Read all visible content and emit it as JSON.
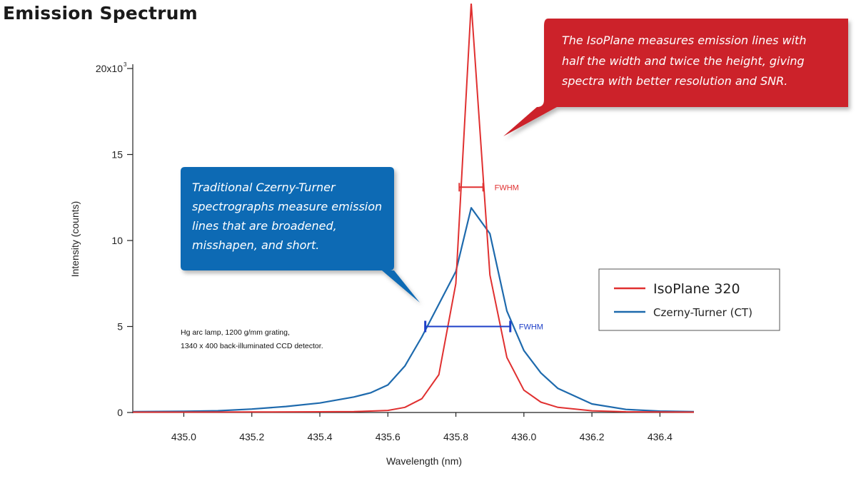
{
  "page": {
    "title": "Emission Spectrum"
  },
  "chart_data": {
    "type": "line",
    "title": "Emission Spectrum",
    "xlabel": "Wavelength (nm)",
    "ylabel": "Intensity (counts)",
    "xlim": [
      434.85,
      436.5
    ],
    "ylim": [
      0,
      20
    ],
    "x_ticks": [
      435.0,
      435.2,
      435.4,
      435.6,
      435.8,
      436.0,
      436.2,
      436.4
    ],
    "x_tick_labels": [
      "435.0",
      "435.2",
      "435.4",
      "435.6",
      "435.8",
      "436.0",
      "436.2",
      "436.4"
    ],
    "y_ticks": [
      0,
      5,
      10,
      15,
      20
    ],
    "y_tick_labels": [
      "0",
      "5",
      "10",
      "15",
      "20x10"
    ],
    "y_top_exponent": "3",
    "grid": false,
    "legend_position": "right",
    "series": [
      {
        "name": "IsoPlane 320",
        "color": "#e03030",
        "x": [
          434.85,
          435.0,
          435.2,
          435.4,
          435.5,
          435.6,
          435.65,
          435.7,
          435.75,
          435.8,
          435.845,
          435.9,
          435.95,
          436.0,
          436.05,
          436.1,
          436.2,
          436.3,
          436.5
        ],
        "values": [
          0.02,
          0.02,
          0.03,
          0.04,
          0.05,
          0.12,
          0.3,
          0.8,
          2.2,
          7.5,
          23.8,
          8.0,
          3.2,
          1.3,
          0.6,
          0.3,
          0.1,
          0.04,
          0.02
        ]
      },
      {
        "name": "Czerny-Turner (CT)",
        "color": "#1e6aad",
        "x": [
          434.85,
          435.0,
          435.1,
          435.2,
          435.3,
          435.4,
          435.5,
          435.55,
          435.6,
          435.65,
          435.7,
          435.75,
          435.8,
          435.845,
          435.9,
          435.95,
          436.0,
          436.05,
          436.1,
          436.2,
          436.3,
          436.4,
          436.5
        ],
        "values": [
          0.05,
          0.07,
          0.1,
          0.2,
          0.35,
          0.55,
          0.9,
          1.15,
          1.6,
          2.7,
          4.4,
          6.3,
          8.2,
          11.9,
          10.4,
          5.9,
          3.6,
          2.3,
          1.4,
          0.5,
          0.18,
          0.08,
          0.05
        ]
      }
    ],
    "fwhm": [
      {
        "label": "FWHM",
        "series": "IsoPlane 320",
        "x1": 435.81,
        "x2": 435.88,
        "y": 13.1,
        "color": "#e03030"
      },
      {
        "label": "FWHM",
        "series": "Czerny-Turner (CT)",
        "x1": 435.71,
        "x2": 435.96,
        "y": 5.0,
        "color": "#1e3fc8"
      }
    ]
  },
  "callouts": {
    "isoplane": {
      "color": "#cc2229",
      "lines": [
        "The IsoPlane measures emission lines with",
        "half the width and twice the height, giving",
        "spectra with better resolution and SNR."
      ]
    },
    "czerny": {
      "color": "#0f6ab4",
      "lines": [
        "Traditional Czerny-Turner",
        "spectrographs measure emission",
        "lines that are broadened,",
        "misshapen, and short."
      ]
    }
  },
  "note": {
    "lines": [
      "Hg arc lamp, 1200 g/mm grating,",
      "1340 x 400 back-illuminated CCD detector."
    ]
  }
}
